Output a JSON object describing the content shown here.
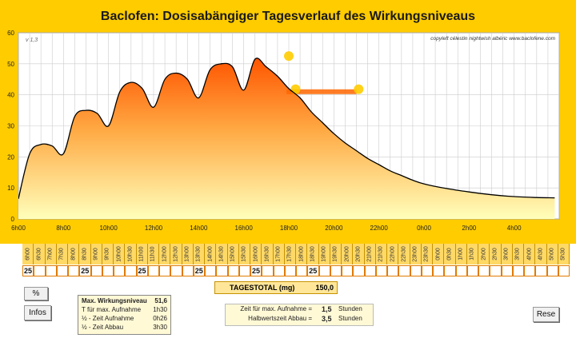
{
  "title": "Baclofen: Dosisabängiger Tagesverlauf des Wirkungsniveaus",
  "version": "v 1,3",
  "credit": "copyleft  célestin  nightwish  albéric  www.baclofene.com",
  "colors": {
    "frame": "#ffcc00",
    "curve": "#000000",
    "fill_top": "#ff5500",
    "fill_mid": "#ffaa44",
    "fill_bottom": "#ffffbb",
    "marker": "#ffcc00"
  },
  "chart_data": {
    "type": "area",
    "title": "Baclofen: Dosisabängiger Tagesverlauf des Wirkungsniveaus",
    "xlabel": "",
    "ylabel": "",
    "x_range_hours": [
      6,
      30
    ],
    "ylim": [
      0,
      60
    ],
    "y_ticks": [
      0,
      10,
      20,
      30,
      40,
      50,
      60
    ],
    "x_ticks": [
      "6h00",
      "8h00",
      "10h00",
      "12h00",
      "14h00",
      "16h00",
      "18h00",
      "20h00",
      "22h00",
      "0h00",
      "2h00",
      "4h00"
    ],
    "grid": true,
    "series": [
      {
        "x": [
          6.0,
          6.5,
          7.0,
          7.5,
          8.0,
          8.5,
          9.0,
          9.5,
          10.0,
          10.5,
          11.0,
          11.5,
          12.0,
          12.5,
          13.0,
          13.5,
          14.0,
          14.5,
          15.0,
          15.5,
          16.0,
          16.5,
          17.0,
          17.5,
          18.0,
          18.5,
          19.0,
          19.5,
          20.0,
          20.5,
          21.0,
          21.5,
          22.0,
          22.5,
          23.0,
          23.5,
          24.0,
          25.0,
          26.0,
          27.0,
          28.0,
          29.0,
          29.8
        ],
        "y": [
          6.5,
          21,
          24,
          23.5,
          21,
          33,
          35,
          34,
          30,
          41,
          44,
          42,
          36,
          45,
          47,
          45,
          39,
          48,
          50,
          49,
          41.5,
          51.5,
          49,
          46,
          42,
          39,
          34.5,
          31,
          27.5,
          24.5,
          22,
          19.5,
          17.5,
          15.5,
          14,
          12.5,
          11.3,
          9.8,
          8.7,
          7.8,
          7.2,
          6.9,
          6.8
        ]
      }
    ],
    "markers": [
      {
        "x": 18.0,
        "y": 52.5
      },
      {
        "x": 18.3,
        "y": 41.8
      },
      {
        "x": 21.1,
        "y": 41.8
      }
    ],
    "max_plateau": {
      "x_start": 17.9,
      "x_end": 21.0,
      "y": 41
    }
  },
  "timeline": {
    "slots": [
      "6h00",
      "6h30",
      "7h00",
      "7h30",
      "8h00",
      "8h30",
      "9h00",
      "9h30",
      "10h00",
      "10h30",
      "11h00",
      "11h30",
      "12h00",
      "12h30",
      "13h00",
      "13h30",
      "14h00",
      "14h30",
      "15h00",
      "15h30",
      "16h00",
      "16h30",
      "17h00",
      "17h30",
      "18h00",
      "18h30",
      "19h00",
      "19h30",
      "20h00",
      "20h30",
      "21h00",
      "21h30",
      "22h00",
      "22h30",
      "23h00",
      "23h30",
      "0h00",
      "0h30",
      "1h00",
      "1h30",
      "2h00",
      "2h30",
      "3h00",
      "3h30",
      "4h00",
      "4h30",
      "5h00",
      "5h30"
    ],
    "doses": [
      "25",
      "",
      "",
      "",
      "",
      "25",
      "",
      "",
      "",
      "",
      "25",
      "",
      "",
      "",
      "",
      "25",
      "",
      "",
      "",
      "",
      "25",
      "",
      "",
      "",
      "",
      "25",
      "",
      "",
      "",
      "",
      "",
      "",
      "",
      "",
      "",
      "",
      "",
      "",
      "",
      "",
      "",
      "",
      "",
      "",
      "",
      "",
      "",
      ""
    ]
  },
  "total": {
    "label": "TAGESTOTAL (mg)",
    "value": "150,0"
  },
  "buttons": {
    "percent": "%",
    "infos": "Infos",
    "reset": "Rese"
  },
  "info": {
    "max_label": "Max. Wirkungsniveau",
    "max_value": "51,6",
    "tmax_label": "T für max. Aufnahme",
    "tmax_value": "1h30",
    "half_up_label": "½ - Zeit Aufnahme",
    "half_up_value": "0h26",
    "half_down_label": "½ - Zeit Abbau",
    "half_down_value": "3h30"
  },
  "params": {
    "absorption_label": "Zeit für max. Aufnahme  =",
    "absorption_value": "1,5",
    "absorption_unit": "Stunden",
    "halflife_label": "Halbwertszeit Abbau =",
    "halflife_value": "3,5",
    "halflife_unit": "Stunden"
  }
}
